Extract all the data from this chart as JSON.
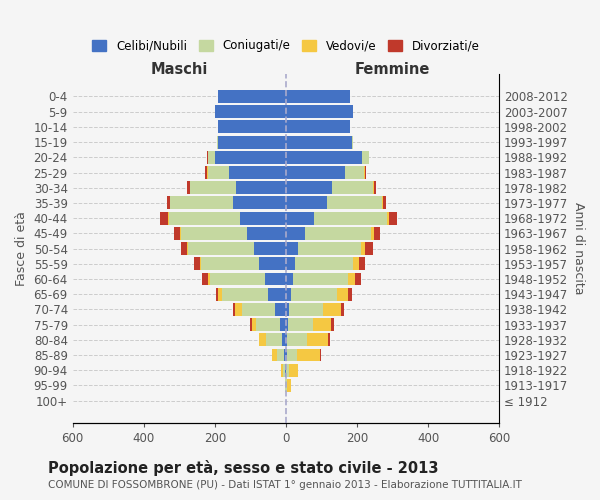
{
  "age_groups": [
    "100+",
    "95-99",
    "90-94",
    "85-89",
    "80-84",
    "75-79",
    "70-74",
    "65-69",
    "60-64",
    "55-59",
    "50-54",
    "45-49",
    "40-44",
    "35-39",
    "30-34",
    "25-29",
    "20-24",
    "15-19",
    "10-14",
    "5-9",
    "0-4"
  ],
  "birth_years": [
    "≤ 1912",
    "1913-1917",
    "1918-1922",
    "1923-1927",
    "1928-1932",
    "1933-1937",
    "1938-1942",
    "1943-1947",
    "1948-1952",
    "1953-1957",
    "1958-1962",
    "1963-1967",
    "1968-1972",
    "1973-1977",
    "1978-1982",
    "1983-1987",
    "1988-1992",
    "1993-1997",
    "1998-2002",
    "2003-2007",
    "2008-2012"
  ],
  "colors": {
    "celibe": "#4472C4",
    "coniugato": "#c5d8a0",
    "vedovo": "#f5c842",
    "divorziato": "#c0392b"
  },
  "maschi": {
    "celibe": [
      0,
      1,
      3,
      5,
      10,
      18,
      30,
      50,
      60,
      75,
      90,
      110,
      130,
      150,
      140,
      160,
      200,
      190,
      190,
      200,
      190
    ],
    "coniugato": [
      0,
      1,
      5,
      20,
      45,
      65,
      95,
      130,
      155,
      165,
      185,
      185,
      200,
      175,
      130,
      60,
      20,
      5,
      0,
      0,
      0
    ],
    "vedovo": [
      0,
      2,
      5,
      15,
      20,
      12,
      18,
      10,
      5,
      3,
      3,
      2,
      1,
      0,
      0,
      2,
      0,
      0,
      0,
      0,
      0
    ],
    "divorziato": [
      0,
      0,
      0,
      0,
      2,
      5,
      5,
      8,
      15,
      15,
      18,
      18,
      22,
      10,
      8,
      5,
      2,
      0,
      0,
      0,
      0
    ]
  },
  "femmine": {
    "nubile": [
      0,
      1,
      1,
      2,
      4,
      6,
      10,
      15,
      20,
      25,
      35,
      55,
      80,
      115,
      130,
      165,
      215,
      185,
      180,
      190,
      180
    ],
    "coniugata": [
      0,
      3,
      8,
      30,
      55,
      70,
      95,
      130,
      155,
      165,
      175,
      185,
      205,
      155,
      115,
      55,
      18,
      4,
      0,
      0,
      0
    ],
    "vedova": [
      0,
      10,
      25,
      65,
      60,
      50,
      50,
      30,
      20,
      15,
      12,
      8,
      6,
      2,
      2,
      2,
      0,
      0,
      0,
      0,
      0
    ],
    "divorziata": [
      0,
      0,
      0,
      2,
      5,
      8,
      8,
      12,
      15,
      18,
      22,
      18,
      22,
      10,
      5,
      2,
      0,
      0,
      0,
      0,
      0
    ]
  },
  "xlim": 600,
  "xticks": [
    -600,
    -400,
    -200,
    0,
    200,
    400,
    600
  ],
  "xticklabels": [
    "600",
    "400",
    "200",
    "0",
    "200",
    "400",
    "600"
  ],
  "title": "Popolazione per età, sesso e stato civile - 2013",
  "subtitle": "COMUNE DI FOSSOMBRONE (PU) - Dati ISTAT 1° gennaio 2013 - Elaborazione TUTTITALIA.IT",
  "ylabel_left": "Fasce di età",
  "ylabel_right": "Anni di nascita",
  "legend_labels": [
    "Celibi/Nubili",
    "Coniugati/e",
    "Vedovi/e",
    "Divorziati/e"
  ],
  "header_maschi": "Maschi",
  "header_femmine": "Femmine"
}
